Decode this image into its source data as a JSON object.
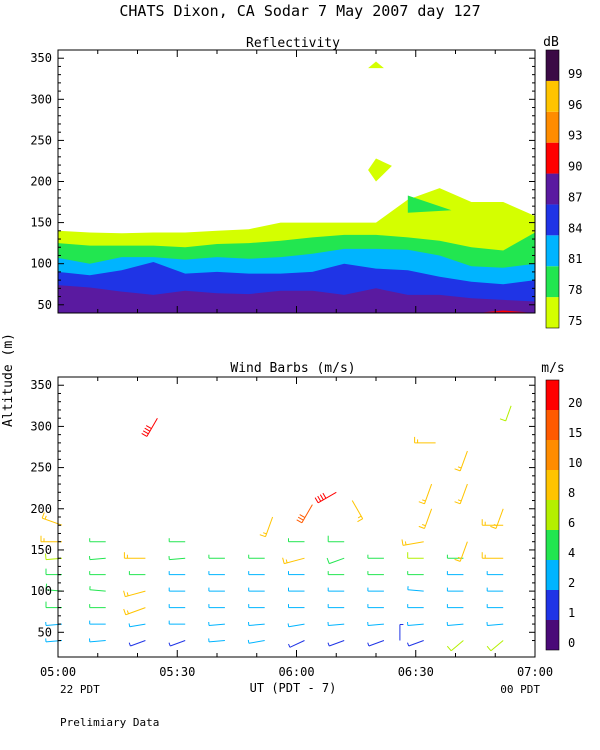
{
  "header": {
    "title": "CHATS Dixon, CA  Sodar   7 May 2007  day 127",
    "x_axis_label": "UT  (PDT - 7)",
    "y_axis_label": "Altitude (m)",
    "left_time_note": "22 PDT",
    "right_time_note": "00 PDT",
    "footer": "Prelimiary Data"
  },
  "chart_data": [
    {
      "type": "area",
      "title": "Reflectivity",
      "xlabel": "",
      "ylabel": "Altitude (m)",
      "xlim": [
        "05:00",
        "07:00"
      ],
      "ylim": [
        40,
        360
      ],
      "x_ticks": [
        "05:00",
        "05:30",
        "06:00",
        "06:30",
        "07:00"
      ],
      "y_ticks": [
        50,
        100,
        150,
        200,
        250,
        300,
        350
      ],
      "colorbar": {
        "label": "dB",
        "ticks": [
          "75",
          "78",
          "81",
          "84",
          "87",
          "90",
          "93",
          "96",
          "99"
        ],
        "colors": [
          "#d4ff00",
          "#22e650",
          "#00b4ff",
          "#1f34e6",
          "#5a1aa0",
          "#ff0000",
          "#ff8c00",
          "#ffc400",
          "#3b0a45"
        ]
      },
      "x_minutes": [
        0,
        8,
        16,
        24,
        32,
        40,
        48,
        56,
        64,
        72,
        80,
        88,
        96,
        104,
        112,
        120
      ],
      "layers": [
        {
          "level": "75",
          "color": "#d4ff00",
          "top": [
            140,
            138,
            137,
            138,
            138,
            140,
            142,
            150,
            150,
            150,
            150,
            178,
            192,
            175,
            175,
            158
          ]
        },
        {
          "level": "78",
          "color": "#22e650",
          "top": [
            125,
            122,
            122,
            122,
            120,
            124,
            125,
            128,
            132,
            135,
            135,
            132,
            128,
            120,
            116,
            138
          ]
        },
        {
          "level": "81",
          "color": "#00b4ff",
          "top": [
            107,
            100,
            108,
            108,
            105,
            108,
            106,
            108,
            112,
            118,
            118,
            117,
            110,
            97,
            95,
            100
          ]
        },
        {
          "level": "84",
          "color": "#1f34e6",
          "top": [
            90,
            86,
            92,
            102,
            88,
            90,
            88,
            88,
            90,
            100,
            94,
            92,
            84,
            78,
            75,
            80
          ]
        },
        {
          "level": "87",
          "color": "#5a1aa0",
          "top": [
            74,
            71,
            66,
            62,
            67,
            64,
            63,
            67,
            67,
            62,
            70,
            62,
            62,
            58,
            56,
            54
          ]
        }
      ],
      "patches": [
        {
          "level": "75",
          "points": [
            [
              78,
              338
            ],
            [
              80,
              346
            ],
            [
              82,
              338
            ]
          ]
        },
        {
          "level": "75",
          "points": [
            [
              78,
              214
            ],
            [
              80,
              228
            ],
            [
              84,
              219
            ],
            [
              80,
              200
            ]
          ]
        },
        {
          "level": "78",
          "points": [
            [
              88,
              183
            ],
            [
              88,
              162
            ],
            [
              99,
              165
            ]
          ]
        },
        {
          "level": "90",
          "points": [
            [
              107,
              41
            ],
            [
              112,
              43
            ],
            [
              118,
              41
            ]
          ]
        }
      ]
    },
    {
      "type": "scatter",
      "title": "Wind Barbs (m/s)",
      "xlabel": "UT  (PDT - 7)",
      "ylabel": "Altitude (m)",
      "xlim": [
        "05:00",
        "07:00"
      ],
      "ylim": [
        20,
        360
      ],
      "x_ticks": [
        "05:00",
        "05:30",
        "06:00",
        "06:30",
        "07:00"
      ],
      "y_ticks": [
        50,
        100,
        150,
        200,
        250,
        300,
        350
      ],
      "colorbar": {
        "label": "m/s",
        "ticks": [
          "0",
          "1",
          "2",
          "4",
          "6",
          "8",
          "10",
          "15",
          "20"
        ],
        "colors": [
          "#4a0a78",
          "#1f34e6",
          "#00b4ff",
          "#22e650",
          "#b4f000",
          "#ffc400",
          "#ff8c00",
          "#ff5a00",
          "#ff0000"
        ]
      },
      "units": "x = minutes after 05:00 UT, y = altitude (m), speed = m/s, dir = degrees wind comes from",
      "barbs": [
        {
          "x": 1,
          "y": 40,
          "speed": 3,
          "dir": 265
        },
        {
          "x": 1,
          "y": 60,
          "speed": 3,
          "dir": 265
        },
        {
          "x": 1,
          "y": 80,
          "speed": 5,
          "dir": 270
        },
        {
          "x": 1,
          "y": 100,
          "speed": 5,
          "dir": 275
        },
        {
          "x": 1,
          "y": 120,
          "speed": 5,
          "dir": 270
        },
        {
          "x": 1,
          "y": 140,
          "speed": 6,
          "dir": 265
        },
        {
          "x": 1,
          "y": 160,
          "speed": 9,
          "dir": 270
        },
        {
          "x": 1,
          "y": 180,
          "speed": 9,
          "dir": 290
        },
        {
          "x": 12,
          "y": 40,
          "speed": 3,
          "dir": 265
        },
        {
          "x": 12,
          "y": 60,
          "speed": 3,
          "dir": 270
        },
        {
          "x": 12,
          "y": 80,
          "speed": 4,
          "dir": 270
        },
        {
          "x": 12,
          "y": 100,
          "speed": 4,
          "dir": 275
        },
        {
          "x": 12,
          "y": 120,
          "speed": 4,
          "dir": 270
        },
        {
          "x": 12,
          "y": 140,
          "speed": 4,
          "dir": 265
        },
        {
          "x": 12,
          "y": 160,
          "speed": 4,
          "dir": 270
        },
        {
          "x": 22,
          "y": 40,
          "speed": 1,
          "dir": 250
        },
        {
          "x": 22,
          "y": 60,
          "speed": 3,
          "dir": 260
        },
        {
          "x": 22,
          "y": 80,
          "speed": 8,
          "dir": 250
        },
        {
          "x": 22,
          "y": 100,
          "speed": 8,
          "dir": 255
        },
        {
          "x": 22,
          "y": 120,
          "speed": 4,
          "dir": 270
        },
        {
          "x": 22,
          "y": 140,
          "speed": 8,
          "dir": 270
        },
        {
          "x": 25,
          "y": 310,
          "speed": 20,
          "dir": 210
        },
        {
          "x": 32,
          "y": 40,
          "speed": 1,
          "dir": 250
        },
        {
          "x": 32,
          "y": 60,
          "speed": 2,
          "dir": 270
        },
        {
          "x": 32,
          "y": 80,
          "speed": 3,
          "dir": 270
        },
        {
          "x": 32,
          "y": 100,
          "speed": 3,
          "dir": 270
        },
        {
          "x": 32,
          "y": 120,
          "speed": 3,
          "dir": 270
        },
        {
          "x": 32,
          "y": 140,
          "speed": 4,
          "dir": 265
        },
        {
          "x": 32,
          "y": 160,
          "speed": 4,
          "dir": 270
        },
        {
          "x": 42,
          "y": 40,
          "speed": 2,
          "dir": 265
        },
        {
          "x": 42,
          "y": 60,
          "speed": 2,
          "dir": 265
        },
        {
          "x": 42,
          "y": 80,
          "speed": 2,
          "dir": 270
        },
        {
          "x": 42,
          "y": 100,
          "speed": 2,
          "dir": 270
        },
        {
          "x": 42,
          "y": 120,
          "speed": 3,
          "dir": 270
        },
        {
          "x": 42,
          "y": 140,
          "speed": 4,
          "dir": 270
        },
        {
          "x": 52,
          "y": 40,
          "speed": 2,
          "dir": 260
        },
        {
          "x": 52,
          "y": 60,
          "speed": 2,
          "dir": 265
        },
        {
          "x": 52,
          "y": 80,
          "speed": 2,
          "dir": 270
        },
        {
          "x": 52,
          "y": 100,
          "speed": 2,
          "dir": 270
        },
        {
          "x": 52,
          "y": 120,
          "speed": 3,
          "dir": 270
        },
        {
          "x": 52,
          "y": 140,
          "speed": 4,
          "dir": 270
        },
        {
          "x": 54,
          "y": 190,
          "speed": 9,
          "dir": 200
        },
        {
          "x": 62,
          "y": 40,
          "speed": 1,
          "dir": 245
        },
        {
          "x": 62,
          "y": 60,
          "speed": 2,
          "dir": 260
        },
        {
          "x": 62,
          "y": 80,
          "speed": 2,
          "dir": 270
        },
        {
          "x": 62,
          "y": 100,
          "speed": 2,
          "dir": 270
        },
        {
          "x": 62,
          "y": 120,
          "speed": 3,
          "dir": 270
        },
        {
          "x": 62,
          "y": 140,
          "speed": 8,
          "dir": 255
        },
        {
          "x": 62,
          "y": 160,
          "speed": 4,
          "dir": 270
        },
        {
          "x": 64,
          "y": 205,
          "speed": 15,
          "dir": 210
        },
        {
          "x": 70,
          "y": 220,
          "speed": 20,
          "dir": 240
        },
        {
          "x": 72,
          "y": 40,
          "speed": 1,
          "dir": 250
        },
        {
          "x": 72,
          "y": 60,
          "speed": 2,
          "dir": 265
        },
        {
          "x": 72,
          "y": 80,
          "speed": 2,
          "dir": 270
        },
        {
          "x": 72,
          "y": 100,
          "speed": 3,
          "dir": 270
        },
        {
          "x": 72,
          "y": 120,
          "speed": 4,
          "dir": 270
        },
        {
          "x": 72,
          "y": 140,
          "speed": 5,
          "dir": 250
        },
        {
          "x": 72,
          "y": 160,
          "speed": 5,
          "dir": 270
        },
        {
          "x": 74,
          "y": 210,
          "speed": 9,
          "dir": 150
        },
        {
          "x": 82,
          "y": 40,
          "speed": 1,
          "dir": 250
        },
        {
          "x": 82,
          "y": 60,
          "speed": 2,
          "dir": 265
        },
        {
          "x": 82,
          "y": 80,
          "speed": 2,
          "dir": 270
        },
        {
          "x": 82,
          "y": 100,
          "speed": 3,
          "dir": 270
        },
        {
          "x": 82,
          "y": 120,
          "speed": 4,
          "dir": 270
        },
        {
          "x": 82,
          "y": 140,
          "speed": 4,
          "dir": 270
        },
        {
          "x": 86,
          "y": 40,
          "speed": 1,
          "dir": 0
        },
        {
          "x": 92,
          "y": 40,
          "speed": 1,
          "dir": 250
        },
        {
          "x": 92,
          "y": 60,
          "speed": 2,
          "dir": 265
        },
        {
          "x": 92,
          "y": 80,
          "speed": 3,
          "dir": 270
        },
        {
          "x": 92,
          "y": 100,
          "speed": 3,
          "dir": 275
        },
        {
          "x": 92,
          "y": 120,
          "speed": 4,
          "dir": 270
        },
        {
          "x": 92,
          "y": 140,
          "speed": 6,
          "dir": 270
        },
        {
          "x": 92,
          "y": 160,
          "speed": 9,
          "dir": 260
        },
        {
          "x": 94,
          "y": 200,
          "speed": 9,
          "dir": 200
        },
        {
          "x": 94,
          "y": 230,
          "speed": 9,
          "dir": 200
        },
        {
          "x": 95,
          "y": 280,
          "speed": 9,
          "dir": 270
        },
        {
          "x": 102,
          "y": 40,
          "speed": 6,
          "dir": 230
        },
        {
          "x": 102,
          "y": 60,
          "speed": 2,
          "dir": 265
        },
        {
          "x": 102,
          "y": 80,
          "speed": 2,
          "dir": 270
        },
        {
          "x": 102,
          "y": 100,
          "speed": 3,
          "dir": 270
        },
        {
          "x": 102,
          "y": 120,
          "speed": 3,
          "dir": 270
        },
        {
          "x": 102,
          "y": 140,
          "speed": 4,
          "dir": 270
        },
        {
          "x": 103,
          "y": 160,
          "speed": 8,
          "dir": 200
        },
        {
          "x": 103,
          "y": 230,
          "speed": 9,
          "dir": 200
        },
        {
          "x": 103,
          "y": 270,
          "speed": 9,
          "dir": 200
        },
        {
          "x": 112,
          "y": 40,
          "speed": 6,
          "dir": 230
        },
        {
          "x": 112,
          "y": 60,
          "speed": 2,
          "dir": 265
        },
        {
          "x": 112,
          "y": 80,
          "speed": 2,
          "dir": 270
        },
        {
          "x": 112,
          "y": 100,
          "speed": 2,
          "dir": 270
        },
        {
          "x": 112,
          "y": 120,
          "speed": 3,
          "dir": 270
        },
        {
          "x": 112,
          "y": 140,
          "speed": 8,
          "dir": 270
        },
        {
          "x": 112,
          "y": 180,
          "speed": 9,
          "dir": 270
        },
        {
          "x": 112,
          "y": 200,
          "speed": 9,
          "dir": 200
        },
        {
          "x": 114,
          "y": 325,
          "speed": 6,
          "dir": 200
        }
      ]
    }
  ]
}
